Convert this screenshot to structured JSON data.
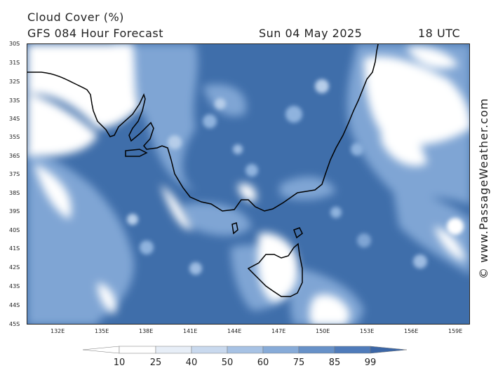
{
  "header": {
    "title": "Cloud Cover (%)",
    "subtitle": "GFS 084 Hour Forecast",
    "date": "Sun 04 May 2025",
    "time": "18 UTC"
  },
  "watermark": "© www.PassageWeather.com",
  "map": {
    "region": "South-east Australia and Tasmania",
    "latitude_labels": [
      "30S",
      "31S",
      "32S",
      "33S",
      "34S",
      "35S",
      "36S",
      "37S",
      "38S",
      "39S",
      "40S",
      "41S",
      "42S",
      "43S",
      "44S",
      "45S"
    ],
    "longitude_labels": [
      "132E",
      "135E",
      "138E",
      "141E",
      "144E",
      "147E",
      "150E",
      "153E",
      "156E",
      "159E"
    ],
    "colors": {
      "ocean_cloud_low": "#3f6eaa",
      "mid": "#8fb3de",
      "high": "#ffffff",
      "coastline": "#000000"
    }
  },
  "legend": {
    "ticks": [
      "10",
      "25",
      "40",
      "50",
      "60",
      "75",
      "85",
      "99"
    ],
    "colors": [
      "#ffffff",
      "#e7eef7",
      "#c9d9ee",
      "#a7c2e4",
      "#87abd8",
      "#6791c8",
      "#4f7bba",
      "#3b66a6"
    ]
  }
}
